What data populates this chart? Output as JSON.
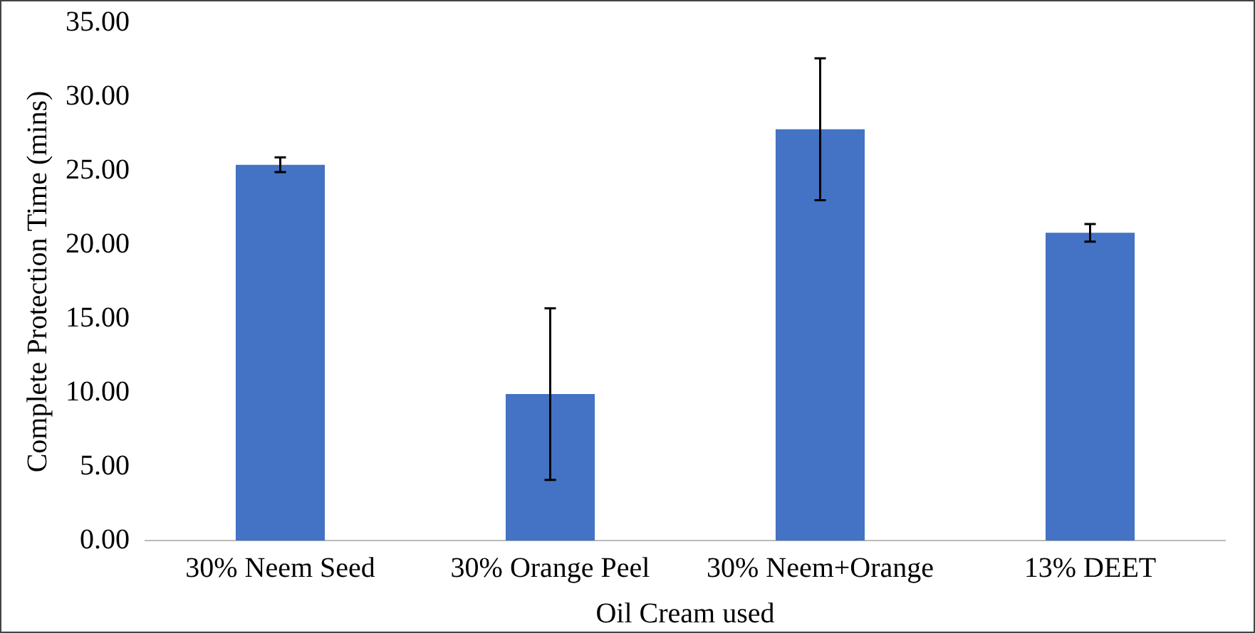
{
  "chart_data": {
    "type": "bar",
    "xlabel": "Oil Cream used",
    "ylabel": "Complete Protection Time (mins)",
    "categories": [
      "30% Neem Seed",
      "30% Orange Peel",
      "30% Neem+Orange",
      "13% DEET"
    ],
    "values": [
      25.4,
      9.9,
      27.8,
      20.8
    ],
    "errors": [
      0.5,
      5.8,
      4.8,
      0.6
    ],
    "color": "#4472c4",
    "ylim": [
      0,
      35
    ],
    "yticks": [
      {
        "value": 0,
        "label": "0.00"
      },
      {
        "value": 5,
        "label": "5.00"
      },
      {
        "value": 10,
        "label": "10.00"
      },
      {
        "value": 15,
        "label": "15.00"
      },
      {
        "value": 20,
        "label": "20.00"
      },
      {
        "value": 25,
        "label": "25.00"
      },
      {
        "value": 30,
        "label": "30.00"
      },
      {
        "value": 35,
        "label": "35.00"
      }
    ],
    "grid": false,
    "legend": false
  }
}
